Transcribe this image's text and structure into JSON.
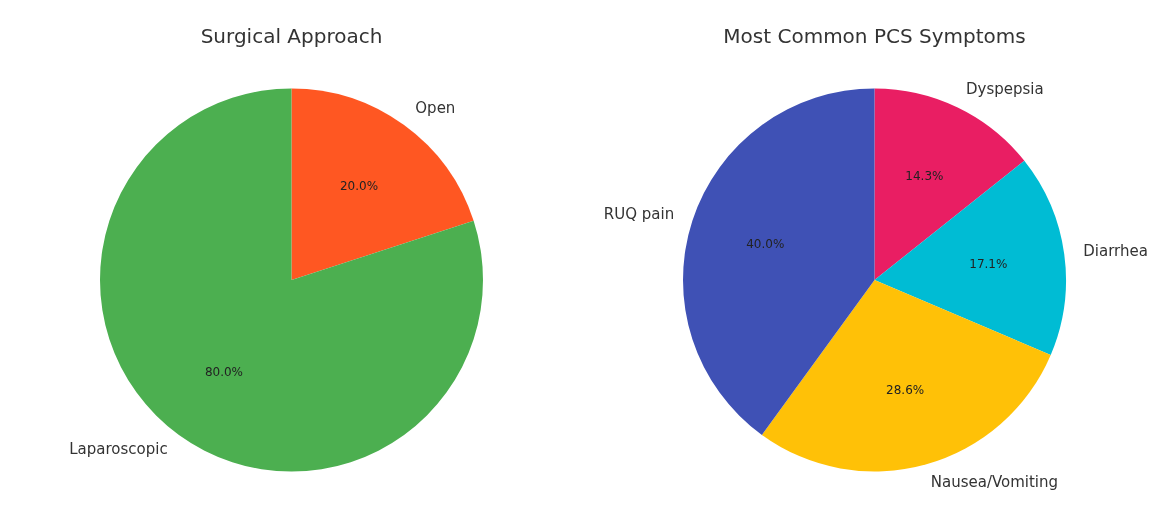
{
  "chart_data": [
    {
      "type": "pie",
      "title": "Surgical Approach",
      "categories": [
        "Open",
        "Laparoscopic"
      ],
      "values": [
        20,
        80
      ],
      "colors": [
        "#ff5722",
        "#4caf50"
      ],
      "value_labels": [
        "20.0%",
        "80.0%"
      ]
    },
    {
      "type": "pie",
      "title": "Most Common PCS Symptoms",
      "categories": [
        "Dyspepsia",
        "Diarrhea",
        "Nausea/Vomiting",
        "RUQ pain"
      ],
      "values": [
        14.3,
        17.1,
        28.6,
        40.0
      ],
      "colors": [
        "#e91e63",
        "#00bcd4",
        "#ffc107",
        "#3f51b5"
      ],
      "value_labels": [
        "14.3%",
        "17.1%",
        "28.6%",
        "40.0%"
      ]
    }
  ]
}
